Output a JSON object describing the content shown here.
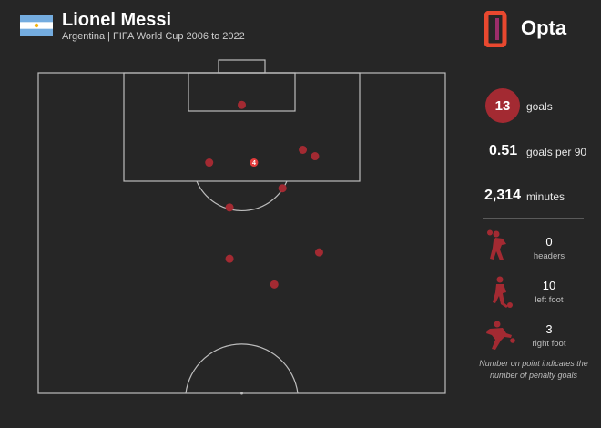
{
  "header": {
    "title": "Lionel Messi",
    "subtitle": "Argentina | FIFA World Cup 2006 to 2022",
    "brand": "Opta"
  },
  "colors": {
    "background": "#262626",
    "accent": "#a32a32",
    "pitch_line": "#bdbdbd",
    "flag_blue": "#74acdf",
    "flag_sun": "#f6b40e"
  },
  "stats": {
    "goals_value": "13",
    "goals_label": "goals",
    "per90_value": "0.51",
    "per90_label": "goals per 90",
    "minutes_value": "2,314",
    "minutes_label": "minutes"
  },
  "body_parts": [
    {
      "value": "0",
      "label": "headers",
      "icon": "header-player-icon"
    },
    {
      "value": "10",
      "label": "left foot",
      "icon": "left-foot-player-icon"
    },
    {
      "value": "3",
      "label": "right foot",
      "icon": "right-foot-player-icon"
    }
  ],
  "note": "Number on point indicates the number of penalty goals",
  "chart_data": {
    "type": "scatter",
    "title": "Lionel Messi",
    "subtitle": "Argentina | FIFA World Cup 2006 to 2022",
    "x": [
      50,
      42,
      53,
      65,
      68,
      60,
      47,
      47,
      69,
      58
    ],
    "y": [
      95,
      86,
      86,
      88,
      87,
      82,
      79,
      71,
      72,
      67
    ],
    "penalty_counts": [
      0,
      0,
      4,
      0,
      0,
      0,
      0,
      0,
      0,
      0
    ],
    "xlim": [
      0,
      100
    ],
    "ylim": [
      50,
      100
    ],
    "grid": false,
    "legend": "none"
  }
}
